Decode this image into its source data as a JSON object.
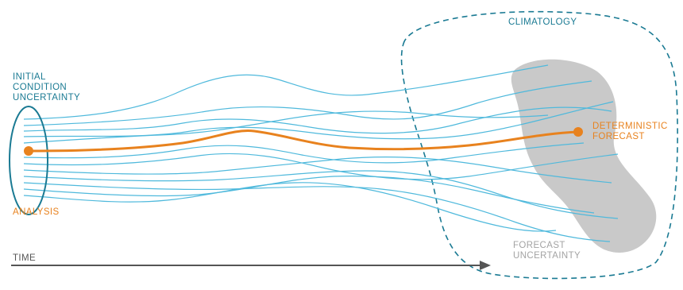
{
  "labels": {
    "climatology": "CLIMATOLOGY",
    "initial_condition": [
      "INITIAL",
      "CONDITION",
      "UNCERTAINTY"
    ],
    "analysis": "ANALYSIS",
    "deterministic_forecast": [
      "DETERMINISTIC",
      "FORECAST"
    ],
    "forecast_uncertainty": [
      "FORECAST",
      "UNCERTAINTY"
    ],
    "time": "TIME"
  },
  "colors": {
    "ensemble_member": "#4fb9dc",
    "deterministic": "#e8821e",
    "climatology_boundary": "#1a7a93",
    "initial_ellipse": "#1a7a93",
    "forecast_uncertainty_fill": "#c9c9c9",
    "time_arrow": "#555555"
  }
}
